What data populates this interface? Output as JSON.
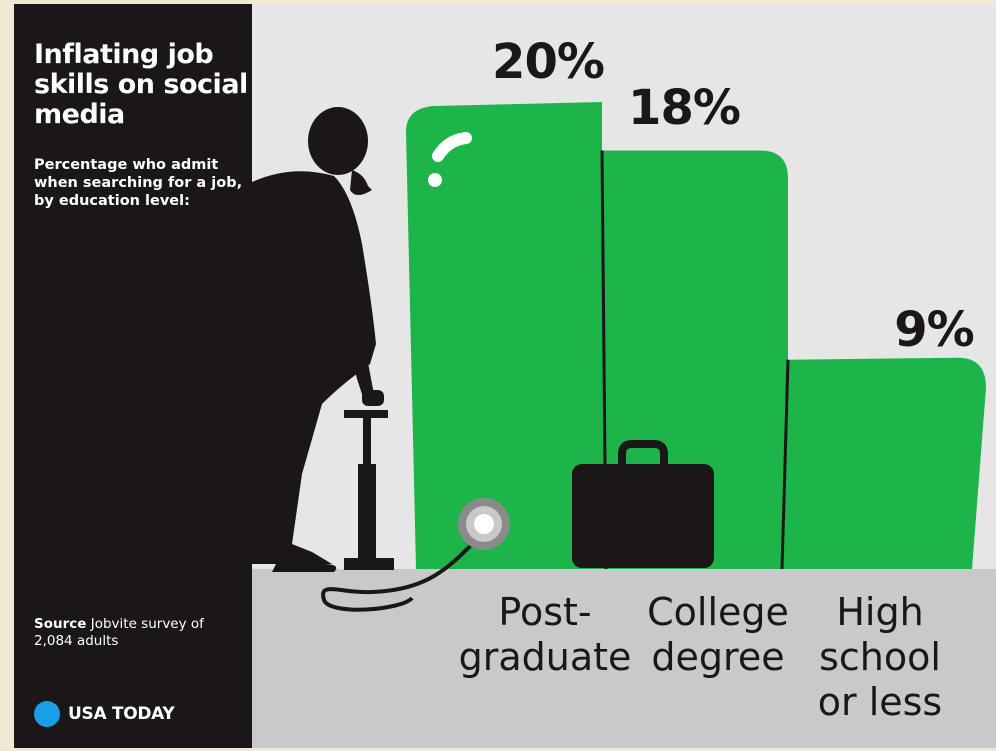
{
  "title": "Inflating job skills on social media",
  "subtitle": "Percentage who admit when searching for a job, by education level:",
  "source": {
    "label": "Source",
    "text": "Jobvite survey of 2,084 adults"
  },
  "brand": "USA TODAY",
  "colors": {
    "bar": "#1db54a",
    "sidebar": "#1b1718",
    "background": "#e6e6e6",
    "ground": "#c9c9c9",
    "logo_dot": "#1a9ee6"
  },
  "chart_data": {
    "type": "bar",
    "categories": [
      [
        "Post-",
        "graduate"
      ],
      [
        "College",
        "degree"
      ],
      [
        "High",
        "school",
        "or less"
      ]
    ],
    "values": [
      20,
      18,
      9
    ],
    "data_labels": [
      "20%",
      "18%",
      "9%"
    ],
    "unit": "%",
    "ylim": [
      0,
      20
    ],
    "grid": false,
    "legend": "none"
  }
}
